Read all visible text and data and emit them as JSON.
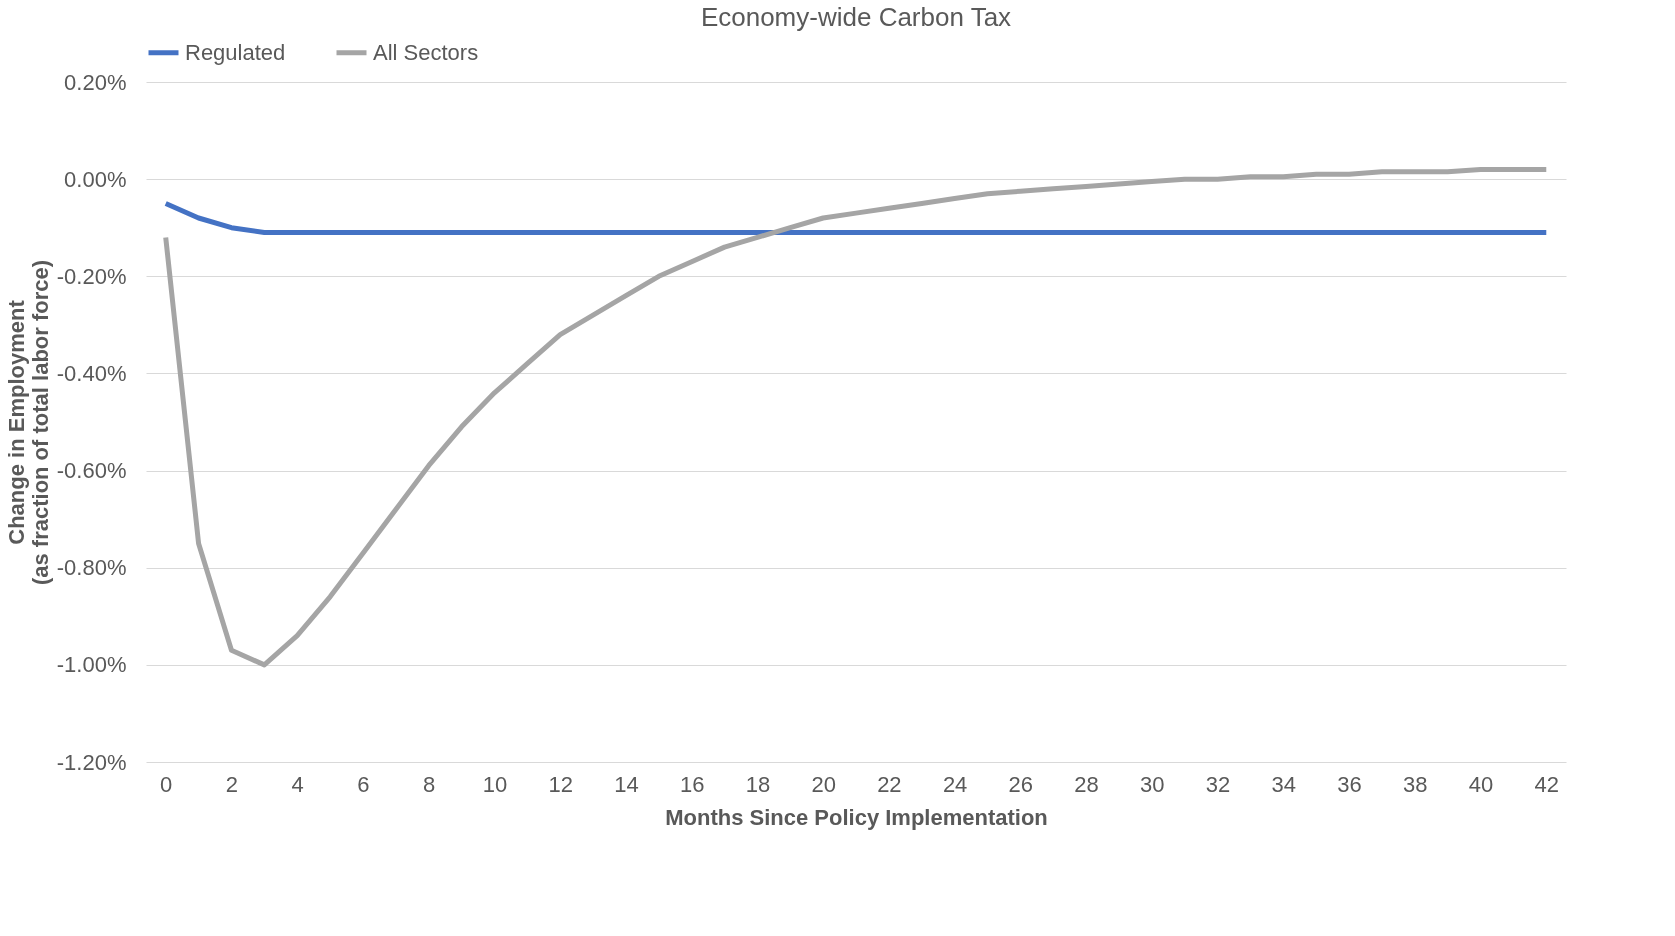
{
  "chart_data": {
    "type": "line",
    "title": "Economy-wide Carbon Tax",
    "xlabel": "Months Since Policy Implementation",
    "ylabel": "Change in Employment\n(as fraction of total labor force)",
    "x": [
      0,
      1,
      2,
      3,
      4,
      5,
      6,
      7,
      8,
      9,
      10,
      11,
      12,
      13,
      14,
      15,
      16,
      17,
      18,
      19,
      20,
      21,
      22,
      23,
      24,
      25,
      26,
      27,
      28,
      29,
      30,
      31,
      32,
      33,
      34,
      35,
      36,
      37,
      38,
      39,
      40,
      41,
      42
    ],
    "series": [
      {
        "name": "Regulated",
        "color": "#4472c4",
        "values": [
          -0.05,
          -0.08,
          -0.1,
          -0.11,
          -0.11,
          -0.11,
          -0.11,
          -0.11,
          -0.11,
          -0.11,
          -0.11,
          -0.11,
          -0.11,
          -0.11,
          -0.11,
          -0.11,
          -0.11,
          -0.11,
          -0.11,
          -0.11,
          -0.11,
          -0.11,
          -0.11,
          -0.11,
          -0.11,
          -0.11,
          -0.11,
          -0.11,
          -0.11,
          -0.11,
          -0.11,
          -0.11,
          -0.11,
          -0.11,
          -0.11,
          -0.11,
          -0.11,
          -0.11,
          -0.11,
          -0.11,
          -0.11,
          -0.11,
          -0.11
        ]
      },
      {
        "name": "All Sectors",
        "color": "#a5a5a5",
        "values": [
          -0.12,
          -0.75,
          -0.97,
          -1.0,
          -0.94,
          -0.86,
          -0.77,
          -0.68,
          -0.59,
          -0.51,
          -0.44,
          -0.38,
          -0.32,
          -0.28,
          -0.24,
          -0.2,
          -0.17,
          -0.14,
          -0.12,
          -0.1,
          -0.08,
          -0.07,
          -0.06,
          -0.05,
          -0.04,
          -0.03,
          -0.025,
          -0.02,
          -0.015,
          -0.01,
          -0.005,
          0,
          0,
          0.005,
          0.005,
          0.01,
          0.01,
          0.015,
          0.015,
          0.015,
          0.02,
          0.02,
          0.02
        ]
      }
    ],
    "xlim": [
      -0.6,
      42.6
    ],
    "xticks": [
      0,
      2,
      4,
      6,
      8,
      10,
      12,
      14,
      16,
      18,
      20,
      22,
      24,
      26,
      28,
      30,
      32,
      34,
      36,
      38,
      40,
      42
    ],
    "ylim": [
      -1.2,
      0.2
    ],
    "yticks": [
      {
        "value": 0.2,
        "label": "0.20%"
      },
      {
        "value": 0,
        "label": "0.00%"
      },
      {
        "value": -0.2,
        "label": "-0.20%"
      },
      {
        "value": -0.4,
        "label": "-0.40%"
      },
      {
        "value": -0.6,
        "label": "-0.60%"
      },
      {
        "value": -0.8,
        "label": "-0.80%"
      },
      {
        "value": -1.0,
        "label": "-1.00%"
      },
      {
        "value": -1.2,
        "label": "-1.20%"
      }
    ],
    "grid": "y",
    "legend": "top",
    "marker": "none",
    "line_style": "solid"
  }
}
